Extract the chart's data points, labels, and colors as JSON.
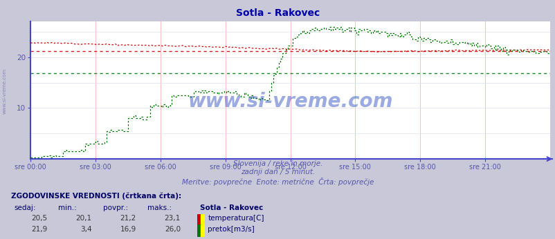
{
  "title": "Sotla - Rakovec",
  "title_color": "#0000aa",
  "bg_color": "#c8c8d8",
  "plot_bg_color": "#ffffff",
  "xlabel_texts": [
    "sre 00:00",
    "sre 03:00",
    "sre 06:00",
    "sre 09:00",
    "sre 12:00",
    "sre 15:00",
    "sre 18:00",
    "sre 21:00"
  ],
  "subtitle1": "Slovenija / reke in morje.",
  "subtitle2": "zadnji dan / 5 minut.",
  "subtitle3": "Meritve: povprečne  Enote: metrične  Črta: povprečje",
  "subtitle_color": "#5555aa",
  "ylim": [
    0,
    27
  ],
  "yticks": [
    10,
    20
  ],
  "n_points": 288,
  "temp_avg": 21.2,
  "temp_min": 20.1,
  "temp_max": 23.1,
  "temp_current": 20.5,
  "flow_avg": 16.9,
  "flow_min": 3.4,
  "flow_max": 26.0,
  "flow_current": 21.9,
  "temp_color": "#cc0000",
  "flow_color": "#007700",
  "axis_color": "#4444cc",
  "grid_v_color": "#ffbbbb",
  "grid_h_color": "#ddddee",
  "watermark": "www.si-vreme.com",
  "watermark_color": "#2244bb",
  "legend_header": "ZGODOVINSKE VREDNOSTI (črtkana črta):",
  "legend_col1": "sedaj:",
  "legend_col2": "min.:",
  "legend_col3": "povpr.:",
  "legend_col4": "maks.:",
  "legend_col5": "Sotla - Rakovec",
  "legend_temp_label": "temperatura[C]",
  "legend_flow_label": "pretok[m3/s]",
  "sidebar_text": "www.si-vreme.com"
}
